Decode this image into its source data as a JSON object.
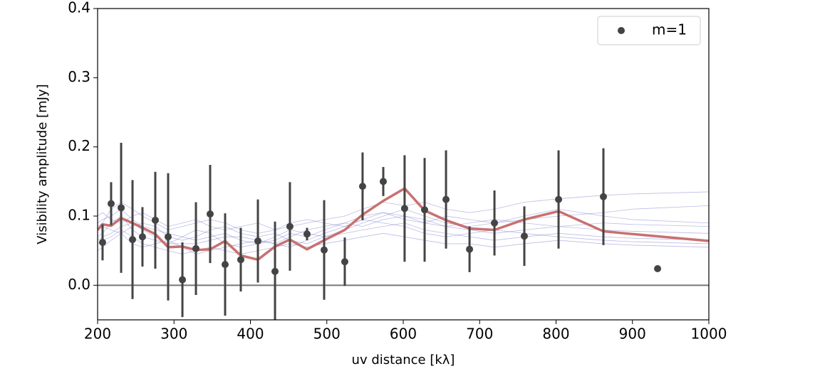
{
  "chart_data": {
    "type": "scatter",
    "xlabel": "uv distance [kλ]",
    "ylabel": "Visibility amplitude [mJy]",
    "xlim": [
      200,
      1000
    ],
    "xticks": [
      200,
      300,
      400,
      500,
      600,
      700,
      800,
      900,
      1000
    ],
    "ylim": [
      -0.05,
      0.4
    ],
    "yticks": [
      {
        "value": 0,
        "label": "0.0"
      },
      0.1,
      0.2,
      0.3,
      0.4
    ],
    "zero_line": 0,
    "legend": "upper right",
    "series": [
      {
        "name": "m=1",
        "color": "#444444",
        "x": [
          206.5,
          217.7,
          230.8,
          245.7,
          258.7,
          275.5,
          292.3,
          311,
          328.7,
          347.3,
          366.9,
          387.4,
          409.8,
          432.2,
          451.7,
          474.1,
          496.5,
          523.5,
          546.8,
          573.9,
          601.8,
          628,
          656,
          686.8,
          719.4,
          758.5,
          803.3,
          862,
          932.9
        ],
        "values": [
          0.062,
          0.118,
          0.112,
          0.066,
          0.07,
          0.094,
          0.07,
          0.008,
          0.053,
          0.103,
          0.03,
          0.037,
          0.064,
          0.02,
          0.085,
          0.074,
          0.051,
          0.034,
          0.143,
          0.15,
          0.111,
          0.109,
          0.124,
          0.052,
          0.09,
          0.071,
          0.124,
          0.128,
          0.024
        ],
        "errors": [
          0.026,
          0.031,
          0.094,
          0.086,
          0.043,
          0.07,
          0.092,
          0.054,
          0.067,
          0.071,
          0.074,
          0.046,
          0.06,
          0.072,
          0.064,
          0.009,
          0.072,
          0.035,
          0.049,
          0.021,
          0.077,
          0.075,
          0.071,
          0.033,
          0.047,
          0.043,
          0.071,
          0.07,
          null
        ]
      }
    ],
    "model_x": [
      200,
      206.5,
      217.7,
      230.8,
      245.7,
      258.7,
      275.5,
      292.3,
      311,
      328.7,
      347.3,
      366.9,
      387.4,
      409.8,
      432.2,
      451.7,
      474.1,
      496.5,
      523.5,
      546.8,
      573.9,
      601.8,
      628,
      656,
      686.8,
      719.4,
      758.5,
      803.3,
      862,
      900,
      1000
    ],
    "best_model": {
      "color": "#c87070",
      "values": [
        0.08,
        0.088,
        0.086,
        0.097,
        0.09,
        0.083,
        0.074,
        0.055,
        0.056,
        0.051,
        0.052,
        0.064,
        0.043,
        0.037,
        0.056,
        0.066,
        0.052,
        0.065,
        0.08,
        0.102,
        0.122,
        0.14,
        0.108,
        0.094,
        0.082,
        0.08,
        0.095,
        0.107,
        0.078,
        0.074,
        0.064
      ]
    },
    "model_samples": [
      {
        "color": "#6b6bc8",
        "values": [
          0.07,
          0.075,
          0.09,
          0.1,
          0.08,
          0.07,
          0.065,
          0.06,
          0.07,
          0.08,
          0.075,
          0.06,
          0.055,
          0.06,
          0.07,
          0.08,
          0.075,
          0.07,
          0.08,
          0.09,
          0.1,
          0.11,
          0.1,
          0.09,
          0.085,
          0.09,
          0.1,
          0.11,
          0.1,
          0.095,
          0.09
        ]
      },
      {
        "color": "#6b6bc8",
        "values": [
          0.09,
          0.095,
          0.1,
          0.11,
          0.095,
          0.085,
          0.08,
          0.075,
          0.07,
          0.065,
          0.07,
          0.075,
          0.065,
          0.06,
          0.065,
          0.075,
          0.07,
          0.08,
          0.09,
          0.085,
          0.095,
          0.1,
          0.09,
          0.085,
          0.08,
          0.075,
          0.08,
          0.085,
          0.08,
          0.078,
          0.075
        ]
      },
      {
        "color": "#6b6bc8",
        "values": [
          0.06,
          0.065,
          0.07,
          0.08,
          0.07,
          0.06,
          0.055,
          0.05,
          0.045,
          0.05,
          0.055,
          0.05,
          0.045,
          0.05,
          0.055,
          0.06,
          0.055,
          0.06,
          0.065,
          0.07,
          0.075,
          0.07,
          0.065,
          0.06,
          0.06,
          0.055,
          0.06,
          0.065,
          0.06,
          0.058,
          0.055
        ]
      },
      {
        "color": "#6b6bc8",
        "values": [
          0.1,
          0.105,
          0.095,
          0.09,
          0.1,
          0.105,
          0.095,
          0.085,
          0.09,
          0.095,
          0.085,
          0.08,
          0.085,
          0.09,
          0.08,
          0.085,
          0.09,
          0.095,
          0.1,
          0.11,
          0.12,
          0.115,
          0.12,
          0.11,
          0.105,
          0.11,
          0.12,
          0.125,
          0.13,
          0.132,
          0.135
        ]
      },
      {
        "color": "#6b6bc8",
        "values": [
          0.08,
          0.085,
          0.08,
          0.075,
          0.085,
          0.09,
          0.085,
          0.07,
          0.065,
          0.07,
          0.08,
          0.085,
          0.075,
          0.07,
          0.075,
          0.065,
          0.06,
          0.07,
          0.075,
          0.08,
          0.085,
          0.09,
          0.08,
          0.075,
          0.07,
          0.065,
          0.07,
          0.075,
          0.07,
          0.068,
          0.065
        ]
      },
      {
        "color": "#6b6bc8",
        "values": [
          0.05,
          0.055,
          0.065,
          0.075,
          0.06,
          0.055,
          0.06,
          0.065,
          0.055,
          0.045,
          0.05,
          0.055,
          0.06,
          0.065,
          0.06,
          0.055,
          0.065,
          0.075,
          0.085,
          0.095,
          0.09,
          0.085,
          0.075,
          0.07,
          0.075,
          0.08,
          0.075,
          0.07,
          0.065,
          0.063,
          0.06
        ]
      },
      {
        "color": "#6b6bc8",
        "values": [
          0.085,
          0.09,
          0.11,
          0.12,
          0.11,
          0.1,
          0.09,
          0.08,
          0.085,
          0.09,
          0.095,
          0.09,
          0.08,
          0.075,
          0.08,
          0.09,
          0.095,
          0.09,
          0.085,
          0.095,
          0.105,
          0.095,
          0.09,
          0.1,
          0.095,
          0.09,
          0.095,
          0.1,
          0.105,
          0.11,
          0.115
        ]
      },
      {
        "color": "#6b6bc8",
        "values": [
          0.065,
          0.07,
          0.075,
          0.085,
          0.09,
          0.08,
          0.07,
          0.06,
          0.06,
          0.06,
          0.065,
          0.07,
          0.07,
          0.065,
          0.06,
          0.07,
          0.08,
          0.085,
          0.09,
          0.1,
          0.105,
          0.1,
          0.095,
          0.085,
          0.09,
          0.095,
          0.09,
          0.085,
          0.09,
          0.088,
          0.085
        ]
      }
    ]
  }
}
